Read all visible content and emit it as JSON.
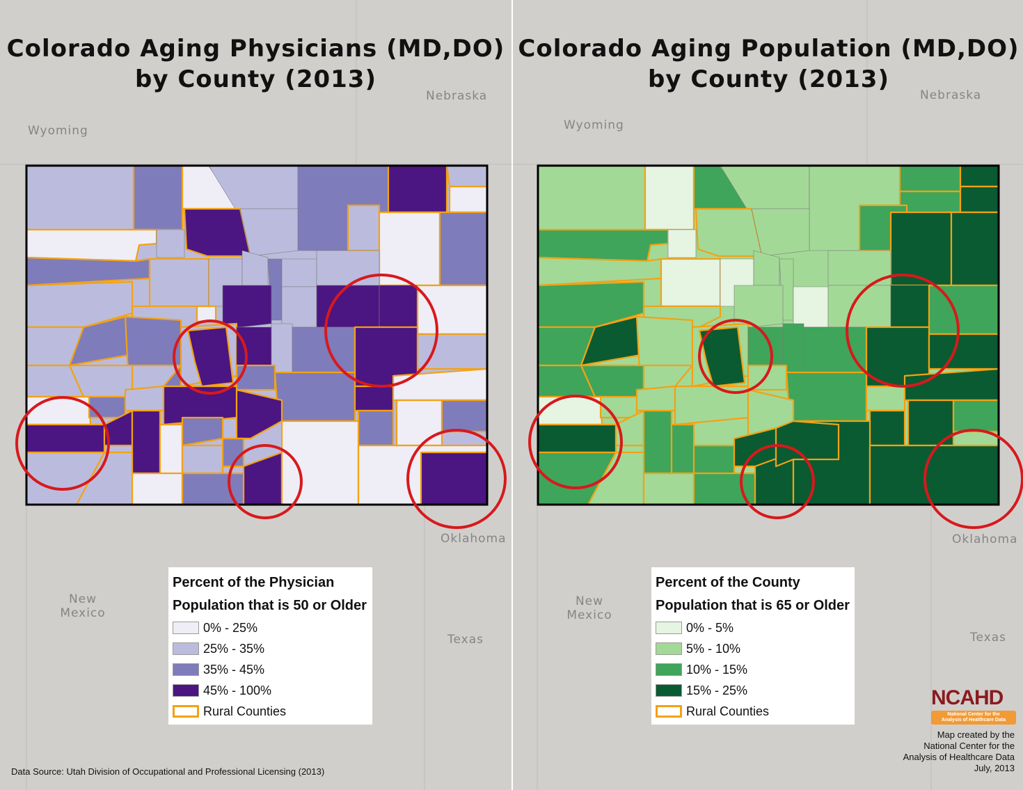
{
  "maps": [
    {
      "title_line1": "Colorado Aging Physicians (MD,DO)",
      "title_line2": "by County (2013)",
      "states": {
        "wyoming": "Wyoming",
        "nebraska": "Nebraska",
        "oklahoma": "Oklahoma",
        "new_mexico_1": "New",
        "new_mexico_2": "Mexico",
        "texas": "Texas"
      },
      "legend": {
        "title_line1": "Percent of the Physician",
        "title_line2": "Population that is 50 or Older",
        "classes": [
          {
            "label": "0% - 25%",
            "color": "#efeef7"
          },
          {
            "label": "25% - 35%",
            "color": "#bbbcdd"
          },
          {
            "label": "35% - 45%",
            "color": "#7f7cbb"
          },
          {
            "label": "45% - 100%",
            "color": "#4b1582"
          }
        ],
        "rural_label": "Rural Counties"
      }
    },
    {
      "title_line1": "Colorado Aging Population (MD,DO)",
      "title_line2": "by County (2013)",
      "states": {
        "wyoming": "Wyoming",
        "nebraska": "Nebraska",
        "oklahoma": "Oklahoma",
        "new_mexico_1": "New",
        "new_mexico_2": "Mexico",
        "texas": "Texas"
      },
      "legend": {
        "title_line1": "Percent of the County",
        "title_line2": "Population that is 65 or Older",
        "classes": [
          {
            "label": "0% - 5%",
            "color": "#e6f4e2"
          },
          {
            "label": "5% - 10%",
            "color": "#a3d997"
          },
          {
            "label": "10% - 15%",
            "color": "#3fa55a"
          },
          {
            "label": "15% - 25%",
            "color": "#0a5b32"
          }
        ],
        "rural_label": "Rural Counties"
      }
    }
  ],
  "colors": {
    "rural_outline": "#f2a215",
    "highlight_circle": "#d7191c",
    "border": "#000000"
  },
  "data_source": "Data Source: Utah Division of Occupational and Professional Licensing (2013)",
  "logo": {
    "brand": "NCAHD",
    "band_line1": "National Center for the",
    "band_line2": "Analysis of Healthcare Data"
  },
  "credit": {
    "line1": "Map created by the",
    "line2": "National Center for the",
    "line3": "Analysis of Healthcare Data",
    "line4": "July, 2013"
  }
}
